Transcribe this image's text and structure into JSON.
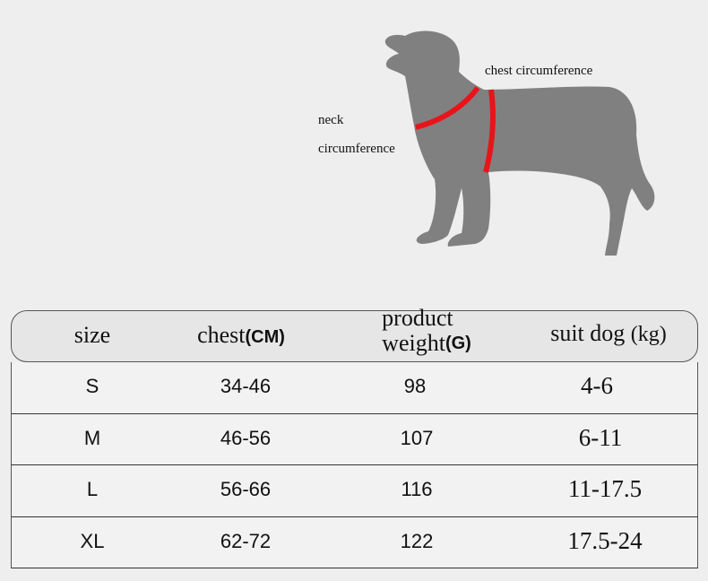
{
  "diagram": {
    "neck_label_1": "neck",
    "neck_label_2": "circumference",
    "chest_label": "chest circumference",
    "colors": {
      "silhouette": "#808080",
      "measure_line": "#e8141a",
      "background": "#eeeeee"
    }
  },
  "table": {
    "headers": [
      {
        "label": "size",
        "unit": ""
      },
      {
        "label": "chest",
        "unit": "(CM)"
      },
      {
        "label_line1": "product",
        "label_line2": "weight",
        "unit": "(G)"
      },
      {
        "label": "suit dog",
        "unit": "(kg)"
      }
    ],
    "rows": [
      {
        "size": "S",
        "chest": "34-46",
        "weight": "98",
        "suit": "4-6"
      },
      {
        "size": "M",
        "chest": "46-56",
        "weight": "107",
        "suit": "6-11"
      },
      {
        "size": "L",
        "chest": "56-66",
        "weight": "116",
        "suit": "11-17.5"
      },
      {
        "size": "XL",
        "chest": "62-72",
        "weight": "122",
        "suit": "17.5-24"
      }
    ]
  }
}
